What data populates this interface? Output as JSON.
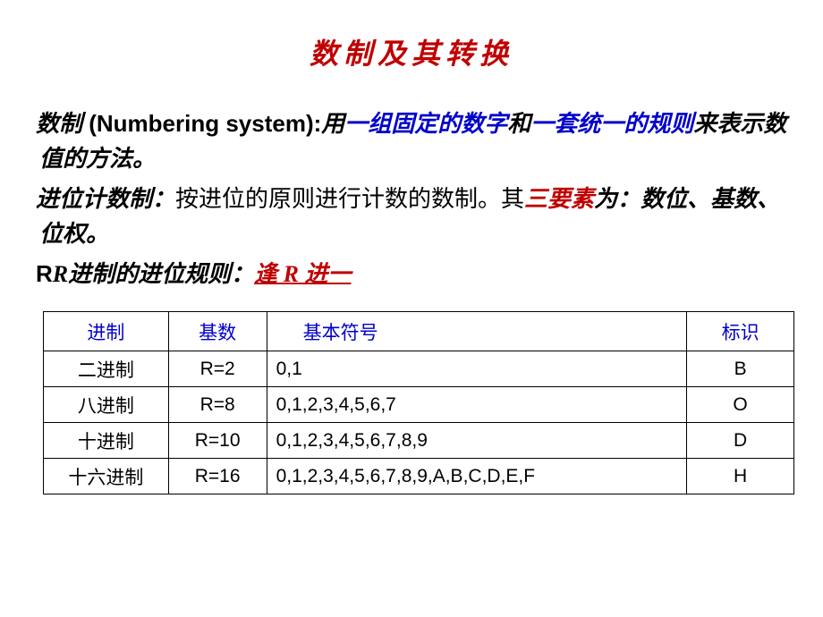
{
  "title": "数制及其转换",
  "para1": {
    "lead": "数制",
    "eng": " (Numbering system):",
    "t1": "用",
    "blue1": "一组固定的数字",
    "t2": "和",
    "blue2": "一套统一的规则",
    "t3": "来表示数值的方法。"
  },
  "para2": {
    "lead": "进位计数制：",
    "t1": "按进位的原则进行计数的数制。其",
    "red1": "三要素",
    "t2": "为：",
    "rest": "数位、基数、位权。"
  },
  "para3": {
    "lead": "R进制的进位规则：",
    "rule": "逢 R 进一"
  },
  "table": {
    "headers": [
      "进制",
      "基数",
      "基本符号",
      "标识"
    ],
    "rows": [
      {
        "name": "二进制",
        "base": "R=2",
        "symbols": "0,1",
        "id": "B"
      },
      {
        "name": "八进制",
        "base": "R=8",
        "symbols": "0,1,2,3,4,5,6,7",
        "id": "O"
      },
      {
        "name": "十进制",
        "base": "R=10",
        "symbols": "0,1,2,3,4,5,6,7,8,9",
        "id": "D"
      },
      {
        "name": "十六进制",
        "base": "R=16",
        "symbols": "0,1,2,3,4,5,6,7,8,9,A,B,C,D,E,F",
        "id": "H"
      }
    ]
  }
}
